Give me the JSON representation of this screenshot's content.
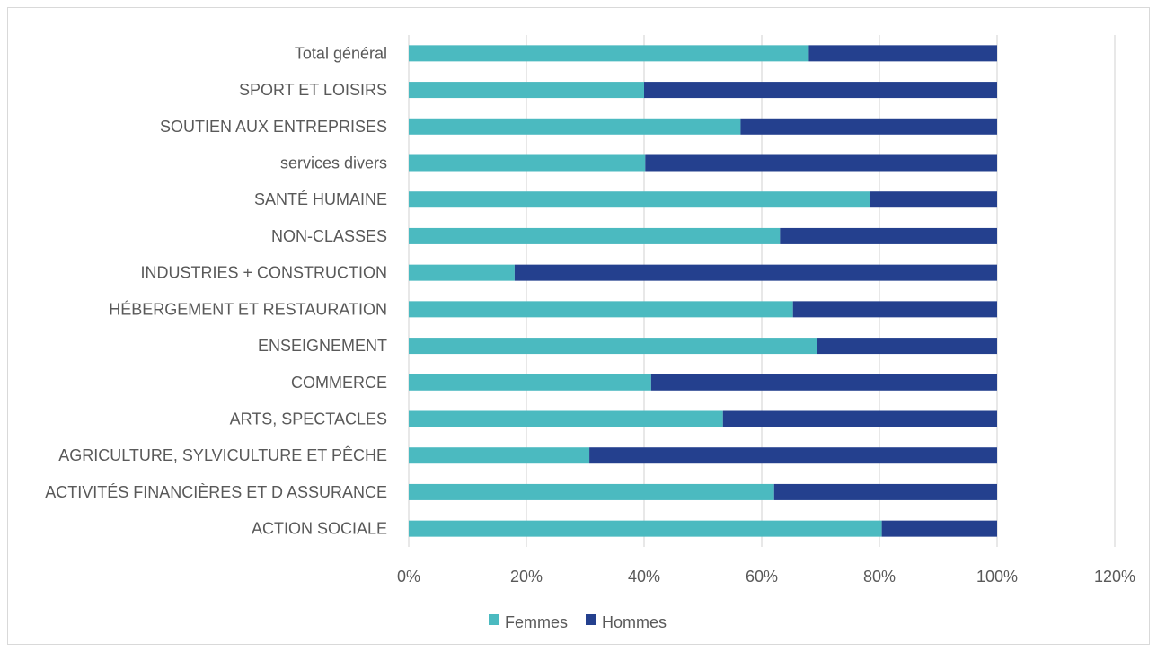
{
  "chart_data": {
    "type": "bar",
    "orientation": "horizontal",
    "stacked": "percent",
    "categories": [
      "Total général",
      "SPORT ET LOISIRS",
      "SOUTIEN AUX ENTREPRISES",
      "services divers",
      "SANTÉ HUMAINE",
      "NON-CLASSES",
      "INDUSTRIES + CONSTRUCTION",
      "HÉBERGEMENT ET RESTAURATION",
      "ENSEIGNEMENT",
      "COMMERCE",
      "ARTS, SPECTACLES",
      "AGRICULTURE, SYLVICULTURE ET PÊCHE",
      "ACTIVITÉS FINANCIÈRES ET D ASSURANCE",
      "ACTION SOCIALE"
    ],
    "series": [
      {
        "name": "Femmes",
        "color": "#4bbac0",
        "values": [
          68,
          40,
          56.4,
          40.2,
          78.4,
          63.1,
          18,
          65.3,
          69.4,
          41.2,
          53.4,
          30.7,
          62.1,
          80.4
        ]
      },
      {
        "name": "Hommes",
        "color": "#24408e",
        "values": [
          32,
          60,
          43.6,
          59.8,
          21.6,
          36.9,
          82,
          34.7,
          30.6,
          58.8,
          46.6,
          69.3,
          37.9,
          19.6
        ]
      }
    ],
    "xlim": [
      0,
      120
    ],
    "xticks": [
      "0%",
      "20%",
      "40%",
      "60%",
      "80%",
      "100%",
      "120%"
    ],
    "grid": true,
    "legend": "bottom"
  }
}
